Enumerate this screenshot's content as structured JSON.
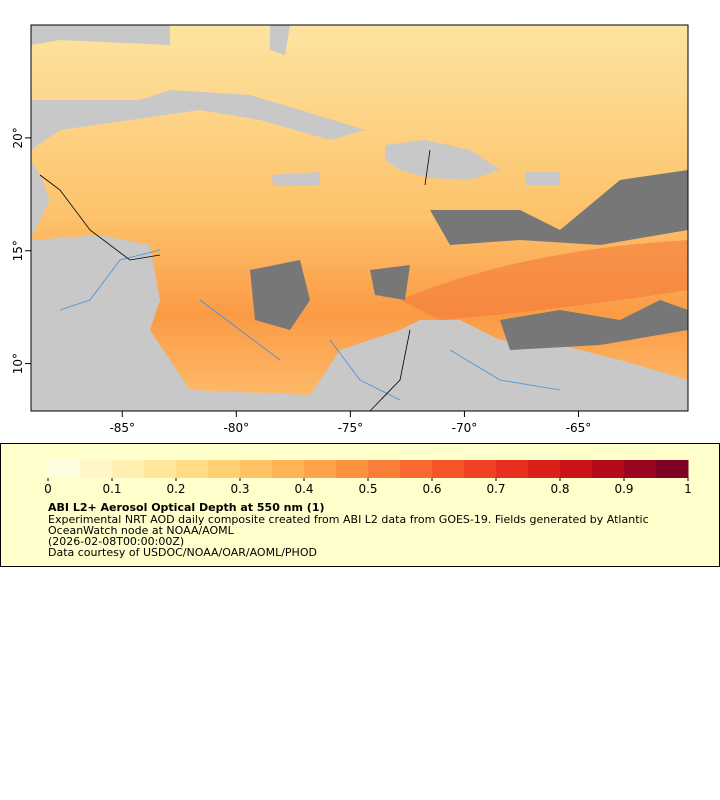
{
  "map": {
    "xlim": [
      -89,
      -60.2
    ],
    "ylim": [
      7.9,
      25
    ],
    "xticks": [
      {
        "value": -85,
        "label": "-85°"
      },
      {
        "value": -80,
        "label": "-80°"
      },
      {
        "value": -75,
        "label": "-75°"
      },
      {
        "value": -70,
        "label": "-70°"
      },
      {
        "value": -65,
        "label": "-65°"
      }
    ],
    "yticks": [
      {
        "value": 10,
        "label": "10°"
      },
      {
        "value": 15,
        "label": "15°"
      },
      {
        "value": 20,
        "label": "20°"
      }
    ]
  },
  "colorbar": {
    "range": [
      0,
      1
    ],
    "ticks": [
      0,
      0.1,
      0.2,
      0.3,
      0.4,
      0.5,
      0.6,
      0.7,
      0.8,
      0.9,
      1
    ],
    "colors": [
      "#fffde0",
      "#fff7c8",
      "#ffefb0",
      "#ffe69a",
      "#ffdc85",
      "#fed072",
      "#fec262",
      "#feb355",
      "#fda34a",
      "#fc9140",
      "#fb7e38",
      "#f96a30",
      "#f55529",
      "#ef4123",
      "#e62f1e",
      "#da2019",
      "#c91316",
      "#b40a1a",
      "#9b041f",
      "#800026"
    ]
  },
  "legend": {
    "title": "ABI L2+ Aerosol Optical Depth at 550 nm (1)",
    "lines": [
      "Experimental NRT AOD daily composite created from ABI L2 data from GOES-19. Fields generated by Atlantic",
      "OceanWatch node at NOAA/AOML",
      "(2026-02-08T00:00:00Z)",
      "Data courtesy of USDOC/NOAA/OAR/AOML/PHOD"
    ]
  }
}
